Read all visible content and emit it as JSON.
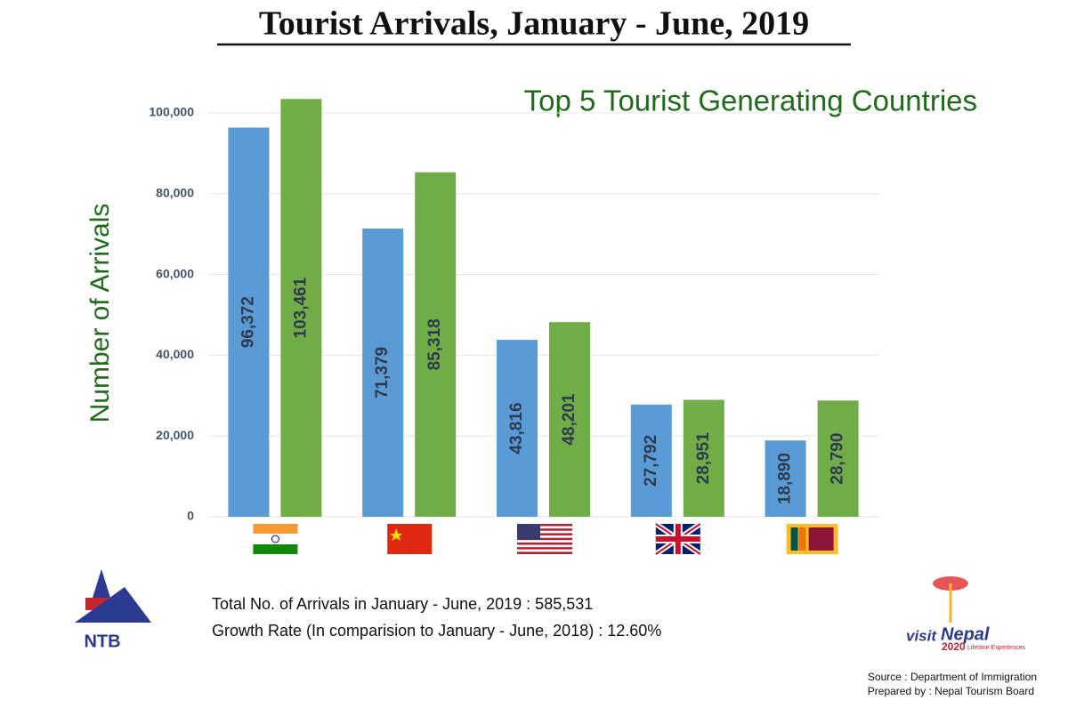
{
  "chart_data": {
    "type": "bar",
    "title": "Tourist Arrivals, January - June, 2019",
    "subtitle": "Top 5 Tourist Generating Countries",
    "y_label": "Number of Arrivals",
    "categories": [
      null,
      null,
      null,
      null,
      null
    ],
    "series": [
      {
        "color": "#5b9bd5",
        "values": [
          96372,
          71379,
          43816,
          27792,
          18890
        ],
        "value_labels": [
          "96,372",
          "71,379",
          "43,816",
          "27,792",
          "18,890"
        ]
      },
      {
        "color": "#70ad47",
        "values": [
          103461,
          85318,
          48201,
          28951,
          28790
        ],
        "value_labels": [
          "103,461",
          "85,318",
          "48,201",
          "28,951",
          "28,790"
        ]
      }
    ],
    "ylim": [
      0,
      100000
    ],
    "yticks": [
      0,
      {
        "value": 20000,
        "label": "20,000"
      },
      {
        "value": 40000,
        "label": "40,000"
      },
      {
        "value": 60000,
        "label": "60,000"
      },
      {
        "value": 80000,
        "label": "80,000"
      },
      {
        "value": 100000,
        "label": "100,000"
      }
    ],
    "grid": true,
    "notes": [
      "Total No. of Arrivals in January - June, 2019 : 585,531",
      "Growth Rate (In comparision to January - June, 2018) : 12.60%"
    ],
    "source": "Source : Department of Immigration",
    "prepared_by": "Prepared by : Nepal Tourism Board"
  },
  "logos": {
    "ntb": "NTB",
    "visit": "visit",
    "nepal": "Nepal",
    "year": "2020",
    "tagline": "Lifetime Experiences"
  }
}
